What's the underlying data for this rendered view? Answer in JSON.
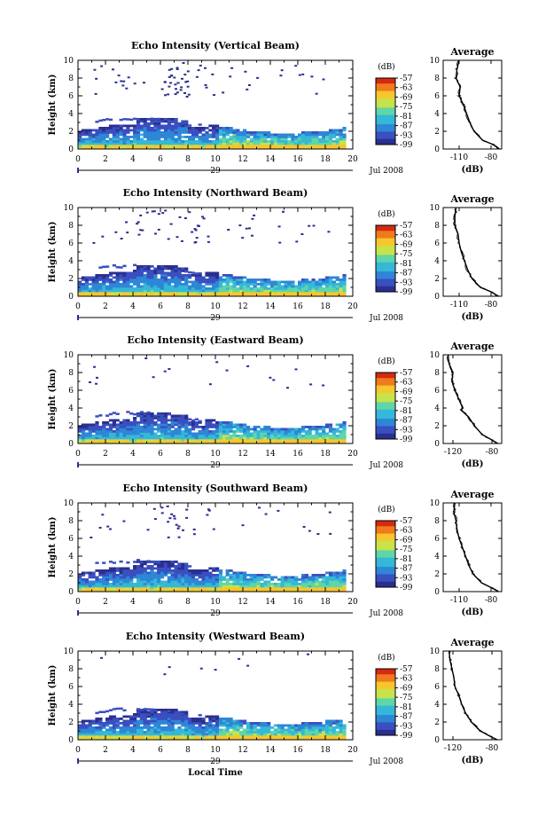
{
  "figure": {
    "x_axis_title": "Local Time",
    "date_label": "Jul 2008",
    "day_label": "29",
    "y_axis_title": "Height (km)",
    "colorbar_unit": "(dB)",
    "average_title": "Average",
    "average_xlabel": "(dB)"
  },
  "chart_data": [
    {
      "type": "heatmap",
      "title": "Echo Intensity (Vertical Beam)",
      "ylabel": "Height (km)",
      "xlabel": "",
      "x_ticks": [
        "0",
        "2",
        "4",
        "6",
        "8",
        "10",
        "12",
        "14",
        "16",
        "18",
        "20"
      ],
      "y_ticks": [
        "0",
        "2",
        "4",
        "6",
        "8",
        "10"
      ],
      "xlim": [
        0,
        20
      ],
      "ylim": [
        0,
        10
      ],
      "colorbar": {
        "label": "(dB)",
        "ticks": [
          "-57",
          "-63",
          "-69",
          "-75",
          "-81",
          "-87",
          "-93",
          "-99"
        ],
        "range": [
          -99,
          -57
        ]
      },
      "profile": {
        "title": "Average",
        "xlabel": "(dB)",
        "x_ticks": [
          "-110",
          "-80"
        ],
        "y_ticks": [
          "0",
          "2",
          "4",
          "6",
          "8",
          "10"
        ],
        "xlim": [
          -125,
          -70
        ],
        "ylim": [
          0,
          10
        ],
        "points": [
          [
            -110,
            10
          ],
          [
            -112,
            9
          ],
          [
            -113,
            8
          ],
          [
            -109,
            7
          ],
          [
            -110,
            6
          ],
          [
            -106,
            5
          ],
          [
            -103,
            4
          ],
          [
            -100,
            3
          ],
          [
            -96,
            2
          ],
          [
            -88,
            1
          ],
          [
            -78,
            0.5
          ],
          [
            -72,
            0
          ]
        ]
      }
    },
    {
      "type": "heatmap",
      "title": "Echo Intensity (Northward Beam)",
      "ylabel": "Height (km)",
      "xlabel": "",
      "x_ticks": [
        "0",
        "2",
        "4",
        "6",
        "8",
        "10",
        "12",
        "14",
        "16",
        "18",
        "20"
      ],
      "y_ticks": [
        "0",
        "2",
        "4",
        "6",
        "8",
        "10"
      ],
      "xlim": [
        0,
        20
      ],
      "ylim": [
        0,
        10
      ],
      "colorbar": {
        "label": "(dB)",
        "ticks": [
          "-57",
          "-63",
          "-69",
          "-75",
          "-81",
          "-87",
          "-93",
          "-99"
        ],
        "range": [
          -99,
          -57
        ]
      },
      "profile": {
        "title": "Average",
        "xlabel": "(dB)",
        "x_ticks": [
          "-110",
          "-80"
        ],
        "y_ticks": [
          "0",
          "2",
          "4",
          "6",
          "8",
          "10"
        ],
        "xlim": [
          -125,
          -70
        ],
        "ylim": [
          0,
          10
        ],
        "points": [
          [
            -113,
            10
          ],
          [
            -114,
            9
          ],
          [
            -114,
            8
          ],
          [
            -111,
            7
          ],
          [
            -110,
            6
          ],
          [
            -108,
            5
          ],
          [
            -105,
            4
          ],
          [
            -102,
            3
          ],
          [
            -98,
            2
          ],
          [
            -90,
            1
          ],
          [
            -80,
            0.5
          ],
          [
            -73,
            0
          ]
        ]
      }
    },
    {
      "type": "heatmap",
      "title": "Echo Intensity (Eastward Beam)",
      "ylabel": "Height (km)",
      "xlabel": "",
      "x_ticks": [
        "0",
        "2",
        "4",
        "6",
        "8",
        "10",
        "12",
        "14",
        "16",
        "18",
        "20"
      ],
      "y_ticks": [
        "0",
        "2",
        "4",
        "6",
        "8",
        "10"
      ],
      "xlim": [
        0,
        20
      ],
      "ylim": [
        0,
        10
      ],
      "colorbar": {
        "label": "(dB)",
        "ticks": [
          "-57",
          "-63",
          "-69",
          "-75",
          "-81",
          "-87",
          "-93",
          "-99"
        ],
        "range": [
          -99,
          -57
        ]
      },
      "profile": {
        "title": "Average",
        "xlabel": "(dB)",
        "x_ticks": [
          "-120",
          "-80"
        ],
        "y_ticks": [
          "0",
          "2",
          "4",
          "6",
          "8",
          "10"
        ],
        "xlim": [
          -130,
          -70
        ],
        "ylim": [
          0,
          10
        ],
        "points": [
          [
            -125,
            10
          ],
          [
            -124,
            9
          ],
          [
            -120,
            8
          ],
          [
            -121,
            7
          ],
          [
            -118,
            6
          ],
          [
            -114,
            5
          ],
          [
            -110,
            4
          ],
          [
            -112,
            3.8
          ],
          [
            -104,
            3
          ],
          [
            -98,
            2
          ],
          [
            -90,
            1
          ],
          [
            -80,
            0.4
          ],
          [
            -74,
            0
          ]
        ]
      }
    },
    {
      "type": "heatmap",
      "title": "Echo Intensity (Southward Beam)",
      "ylabel": "Height (km)",
      "xlabel": "",
      "x_ticks": [
        "0",
        "2",
        "4",
        "6",
        "8",
        "10",
        "12",
        "14",
        "16",
        "18",
        "20"
      ],
      "y_ticks": [
        "0",
        "2",
        "4",
        "6",
        "8",
        "10"
      ],
      "xlim": [
        0,
        20
      ],
      "ylim": [
        0,
        10
      ],
      "colorbar": {
        "label": "(dB)",
        "ticks": [
          "-57",
          "-63",
          "-69",
          "-75",
          "-81",
          "-87",
          "-93",
          "-99"
        ],
        "range": [
          -99,
          -57
        ]
      },
      "profile": {
        "title": "Average",
        "xlabel": "(dB)",
        "x_ticks": [
          "-110",
          "-80"
        ],
        "y_ticks": [
          "0",
          "2",
          "4",
          "6",
          "8",
          "10"
        ],
        "xlim": [
          -125,
          -70
        ],
        "ylim": [
          0,
          10
        ],
        "points": [
          [
            -114,
            10
          ],
          [
            -115,
            9
          ],
          [
            -113,
            8
          ],
          [
            -112,
            7
          ],
          [
            -110,
            6
          ],
          [
            -107,
            5
          ],
          [
            -104,
            4
          ],
          [
            -101,
            3
          ],
          [
            -97,
            2
          ],
          [
            -89,
            1
          ],
          [
            -79,
            0.4
          ],
          [
            -73,
            0
          ]
        ]
      }
    },
    {
      "type": "heatmap",
      "title": "Echo Intensity (Westward Beam)",
      "ylabel": "Height (km)",
      "xlabel": "Local Time",
      "x_ticks": [
        "0",
        "2",
        "4",
        "6",
        "8",
        "10",
        "12",
        "14",
        "16",
        "18",
        "20"
      ],
      "y_ticks": [
        "0",
        "2",
        "4",
        "6",
        "8",
        "10"
      ],
      "xlim": [
        0,
        20
      ],
      "ylim": [
        0,
        10
      ],
      "colorbar": {
        "label": "(dB)",
        "ticks": [
          "-57",
          "-63",
          "-69",
          "-75",
          "-81",
          "-87",
          "-93",
          "-99"
        ],
        "range": [
          -99,
          -57
        ]
      },
      "profile": {
        "title": "Average",
        "xlabel": "(dB)",
        "x_ticks": [
          "-120",
          "-80"
        ],
        "y_ticks": [
          "0",
          "2",
          "4",
          "6",
          "8",
          "10"
        ],
        "xlim": [
          -130,
          -70
        ],
        "ylim": [
          0,
          10
        ],
        "points": [
          [
            -124,
            10
          ],
          [
            -123,
            9
          ],
          [
            -121,
            8
          ],
          [
            -119,
            7
          ],
          [
            -118,
            6
          ],
          [
            -114,
            5
          ],
          [
            -111,
            4
          ],
          [
            -107,
            3
          ],
          [
            -101,
            2
          ],
          [
            -92,
            1
          ],
          [
            -82,
            0.4
          ],
          [
            -75,
            0
          ]
        ]
      }
    }
  ]
}
